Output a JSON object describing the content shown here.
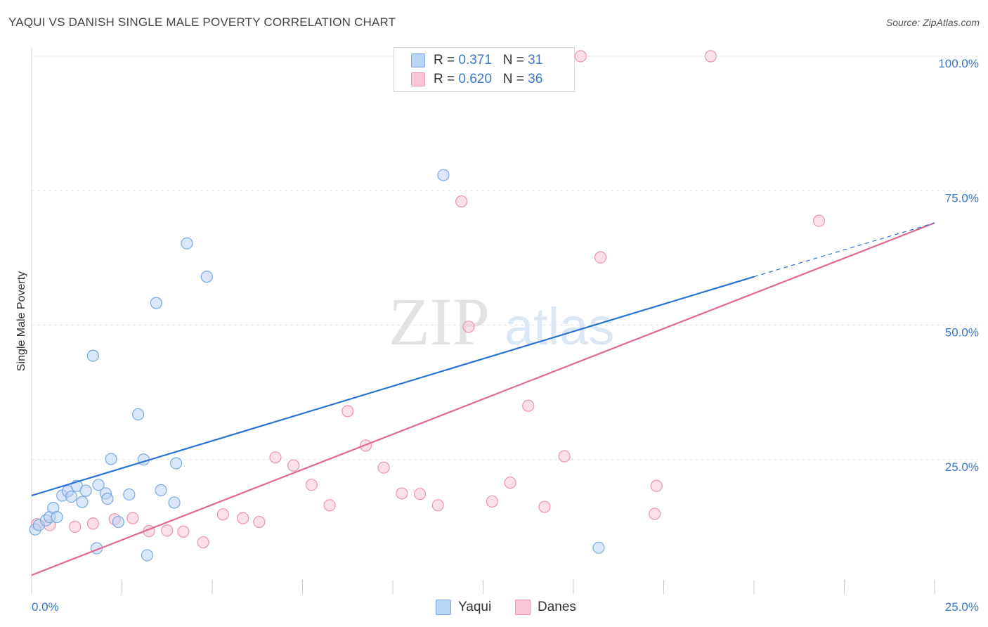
{
  "header": {
    "title": "YAQUI VS DANISH SINGLE MALE POVERTY CORRELATION CHART",
    "source": "Source: ZipAtlas.com"
  },
  "legend": {
    "yaqui": {
      "r_label": "R = ",
      "r_value": "0.371",
      "n_label": "N = ",
      "n_value": "31"
    },
    "danes": {
      "r_label": "R = ",
      "r_value": "0.620",
      "n_label": "N = ",
      "n_value": "36"
    }
  },
  "bottom_legend": {
    "yaqui": "Yaqui",
    "danes": "Danes"
  },
  "watermark": {
    "zip": "ZIP",
    "atlas": "atlas"
  },
  "colors": {
    "yaqui_fill": "#b9d4f4",
    "yaqui_stroke": "#7aa9e0",
    "yaqui_line": "#2a72d0",
    "danes_fill": "#f9c7d6",
    "danes_stroke": "#eb93b0",
    "danes_line": "#e0698f",
    "tick": "#3a78c9",
    "grid": "#e3e3e3"
  },
  "chart_data": {
    "type": "scatter",
    "title": "YAQUI VS DANISH SINGLE MALE POVERTY CORRELATION CHART",
    "xlabel": "",
    "ylabel": "Single Male Poverty",
    "xlim": [
      0,
      25
    ],
    "ylim": [
      0,
      100
    ],
    "x_tick_labels": [
      "0.0%",
      "25.0%"
    ],
    "y_ticks": [
      25,
      50,
      75,
      100
    ],
    "y_tick_labels": [
      "25.0%",
      "50.0%",
      "75.0%",
      "100.0%"
    ],
    "legend_position": "top-center",
    "series": [
      {
        "name": "Yaqui",
        "r": 0.371,
        "n": 31,
        "points": [
          [
            0.1,
            12.0
          ],
          [
            0.2,
            12.8
          ],
          [
            0.4,
            13.7
          ],
          [
            0.5,
            14.3
          ],
          [
            0.6,
            16.0
          ],
          [
            0.7,
            14.3
          ],
          [
            0.85,
            18.3
          ],
          [
            1.0,
            19.1
          ],
          [
            1.1,
            18.1
          ],
          [
            1.25,
            20.1
          ],
          [
            1.4,
            17.1
          ],
          [
            1.5,
            19.2
          ],
          [
            1.7,
            44.3
          ],
          [
            1.8,
            8.5
          ],
          [
            1.85,
            20.3
          ],
          [
            2.05,
            18.7
          ],
          [
            2.1,
            17.7
          ],
          [
            2.2,
            25.1
          ],
          [
            2.4,
            13.4
          ],
          [
            2.7,
            18.5
          ],
          [
            2.95,
            33.4
          ],
          [
            3.1,
            25.0
          ],
          [
            3.2,
            7.2
          ],
          [
            3.45,
            54.1
          ],
          [
            3.58,
            19.3
          ],
          [
            3.95,
            17.0
          ],
          [
            4.0,
            24.3
          ],
          [
            4.3,
            65.2
          ],
          [
            4.85,
            59.0
          ],
          [
            11.4,
            77.9
          ],
          [
            15.7,
            8.6
          ]
        ],
        "trend": {
          "x": [
            0,
            20
          ],
          "y": [
            18.3,
            59.0
          ],
          "dashed_extension": {
            "x": [
              20,
              25
            ],
            "y": [
              59.0,
              69.0
            ]
          }
        }
      },
      {
        "name": "Danes",
        "r": 0.62,
        "n": 36,
        "points": [
          [
            0.15,
            13.0
          ],
          [
            0.5,
            12.8
          ],
          [
            1.2,
            12.5
          ],
          [
            1.7,
            13.1
          ],
          [
            2.3,
            13.9
          ],
          [
            2.8,
            14.1
          ],
          [
            3.25,
            11.7
          ],
          [
            3.75,
            11.8
          ],
          [
            4.2,
            11.6
          ],
          [
            4.75,
            9.6
          ],
          [
            5.3,
            14.8
          ],
          [
            5.85,
            14.1
          ],
          [
            6.3,
            13.4
          ],
          [
            6.75,
            25.4
          ],
          [
            7.25,
            23.9
          ],
          [
            7.75,
            20.3
          ],
          [
            8.25,
            16.5
          ],
          [
            8.75,
            34.0
          ],
          [
            9.25,
            27.6
          ],
          [
            9.75,
            23.5
          ],
          [
            10.25,
            18.7
          ],
          [
            10.75,
            18.6
          ],
          [
            11.25,
            16.5
          ],
          [
            11.9,
            73.0
          ],
          [
            12.1,
            49.7
          ],
          [
            12.75,
            17.2
          ],
          [
            13.25,
            20.7
          ],
          [
            13.75,
            35.0
          ],
          [
            14.2,
            16.2
          ],
          [
            14.75,
            25.6
          ],
          [
            15.2,
            100.0
          ],
          [
            15.75,
            62.6
          ],
          [
            17.25,
            14.9
          ],
          [
            17.3,
            20.1
          ],
          [
            18.8,
            100.0
          ],
          [
            21.8,
            69.4
          ]
        ],
        "trend": {
          "x": [
            0,
            25
          ],
          "y": [
            3.5,
            69.0
          ]
        }
      }
    ]
  }
}
